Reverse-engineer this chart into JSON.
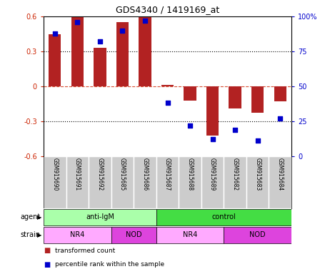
{
  "title": "GDS4340 / 1419169_at",
  "samples": [
    "GSM915690",
    "GSM915691",
    "GSM915692",
    "GSM915685",
    "GSM915686",
    "GSM915687",
    "GSM915688",
    "GSM915689",
    "GSM915682",
    "GSM915683",
    "GSM915684"
  ],
  "bar_values": [
    0.45,
    0.6,
    0.33,
    0.55,
    0.595,
    0.01,
    -0.12,
    -0.42,
    -0.19,
    -0.23,
    -0.13
  ],
  "percentile_values": [
    88,
    96,
    82,
    90,
    97,
    38,
    22,
    12,
    19,
    11,
    27
  ],
  "bar_color": "#b22222",
  "dot_color": "#0000cc",
  "ylim": [
    -0.6,
    0.6
  ],
  "y2lim": [
    0,
    100
  ],
  "yticks": [
    -0.6,
    -0.3,
    0.0,
    0.3,
    0.6
  ],
  "ytick_labels": [
    "-0.6",
    "-0.3",
    "0",
    "0.3",
    "0.6"
  ],
  "y2ticks": [
    0,
    25,
    50,
    75,
    100
  ],
  "y2tick_labels": [
    "0",
    "25",
    "50",
    "75",
    "100%"
  ],
  "hline_y": 0.0,
  "dotline_y": [
    0.3,
    -0.3
  ],
  "agent_groups": [
    {
      "label": "anti-IgM",
      "start": 0,
      "end": 5,
      "color": "#aaffaa"
    },
    {
      "label": "control",
      "start": 5,
      "end": 11,
      "color": "#44dd44"
    }
  ],
  "strain_groups": [
    {
      "label": "NR4",
      "start": 0,
      "end": 3,
      "color": "#ffaaff"
    },
    {
      "label": "NOD",
      "start": 3,
      "end": 5,
      "color": "#dd44dd"
    },
    {
      "label": "NR4",
      "start": 5,
      "end": 8,
      "color": "#ffaaff"
    },
    {
      "label": "NOD",
      "start": 8,
      "end": 11,
      "color": "#dd44dd"
    }
  ],
  "agent_label": "agent",
  "strain_label": "strain",
  "legend_bar_label": "transformed count",
  "legend_dot_label": "percentile rank within the sample",
  "background_color": "#ffffff",
  "left_tick_color": "#cc2200",
  "right_tick_color": "#0000cc",
  "label_bg": "#cccccc"
}
